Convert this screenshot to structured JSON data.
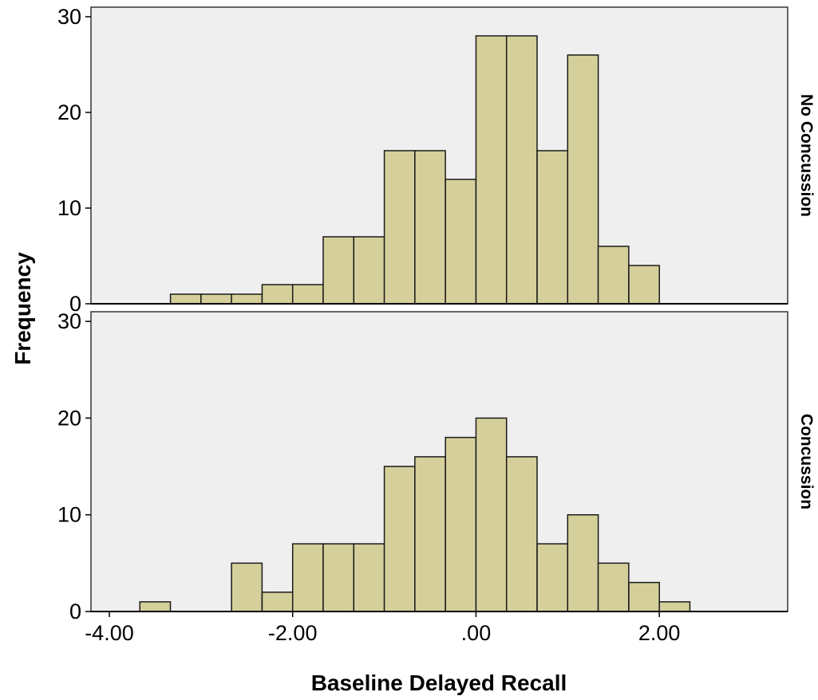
{
  "chart_data": {
    "type": "bar",
    "subtype": "histogram",
    "xlabel": "Baseline Delayed Recall",
    "ylabel": "Frequency",
    "xlim": [
      -4.2,
      3.4
    ],
    "ylim": [
      0,
      31
    ],
    "x_ticks": [
      {
        "value": -4,
        "label": "-4.00"
      },
      {
        "value": -2,
        "label": "-2.00"
      },
      {
        "value": 0,
        "label": ".00"
      },
      {
        "value": 2,
        "label": "2.00"
      }
    ],
    "y_ticks": [
      {
        "value": 0,
        "label": "0"
      },
      {
        "value": 10,
        "label": "10"
      },
      {
        "value": 20,
        "label": "20"
      },
      {
        "value": 30,
        "label": "30"
      }
    ],
    "bin_width": 0.3333,
    "bar_color": "#d5d09b",
    "panel_bg": "#efefef",
    "panels": [
      {
        "label": "No Concussion",
        "bins": [
          {
            "start": -3.333,
            "count": 1
          },
          {
            "start": -3.0,
            "count": 1
          },
          {
            "start": -2.667,
            "count": 1
          },
          {
            "start": -2.333,
            "count": 2
          },
          {
            "start": -2.0,
            "count": 2
          },
          {
            "start": -1.667,
            "count": 7
          },
          {
            "start": -1.333,
            "count": 7
          },
          {
            "start": -1.0,
            "count": 16
          },
          {
            "start": -0.667,
            "count": 16
          },
          {
            "start": -0.333,
            "count": 13
          },
          {
            "start": 0.0,
            "count": 28
          },
          {
            "start": 0.333,
            "count": 28
          },
          {
            "start": 0.667,
            "count": 16
          },
          {
            "start": 1.0,
            "count": 26
          },
          {
            "start": 1.333,
            "count": 6
          },
          {
            "start": 1.667,
            "count": 4
          }
        ]
      },
      {
        "label": "Concussion",
        "bins": [
          {
            "start": -3.667,
            "count": 1
          },
          {
            "start": -2.667,
            "count": 5
          },
          {
            "start": -2.333,
            "count": 2
          },
          {
            "start": -2.0,
            "count": 7
          },
          {
            "start": -1.667,
            "count": 7
          },
          {
            "start": -1.333,
            "count": 7
          },
          {
            "start": -1.0,
            "count": 15
          },
          {
            "start": -0.667,
            "count": 16
          },
          {
            "start": -0.333,
            "count": 18
          },
          {
            "start": 0.0,
            "count": 20
          },
          {
            "start": 0.333,
            "count": 16
          },
          {
            "start": 0.667,
            "count": 7
          },
          {
            "start": 1.0,
            "count": 10
          },
          {
            "start": 1.333,
            "count": 5
          },
          {
            "start": 1.667,
            "count": 3
          },
          {
            "start": 2.0,
            "count": 1
          }
        ]
      }
    ]
  }
}
